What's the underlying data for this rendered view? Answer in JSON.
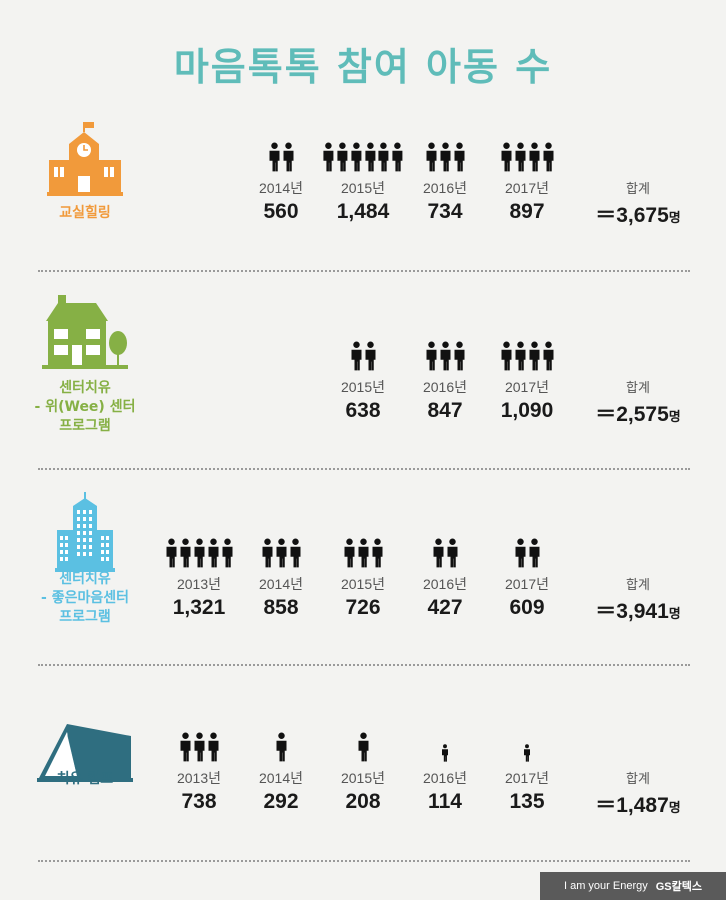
{
  "title": "마음톡톡 참여 아동 수",
  "total_label": "합계",
  "unit": "명",
  "colors": {
    "title": "#5fbcb9",
    "orange": "#f19a3b",
    "green": "#86b045",
    "blue": "#5bc0e2",
    "teal": "#2f6e80"
  },
  "sections": [
    {
      "label_lines": [
        "교실힐링"
      ],
      "icon": "school-building-icon",
      "color": "#f19a3b",
      "years": [
        {
          "year": "2014년",
          "value": "560",
          "figures": 2
        },
        {
          "year": "2015년",
          "value": "1,484",
          "figures": 6
        },
        {
          "year": "2016년",
          "value": "734",
          "figures": 3
        },
        {
          "year": "2017년",
          "value": "897",
          "figures": 4
        }
      ],
      "total": "＝3,675"
    },
    {
      "label_lines": [
        "센터치유",
        "- 위(Wee) 센터",
        "프로그램"
      ],
      "icon": "house-with-tree-icon",
      "color": "#86b045",
      "years": [
        {
          "year": "2015년",
          "value": "638",
          "figures": 2
        },
        {
          "year": "2016년",
          "value": "847",
          "figures": 3
        },
        {
          "year": "2017년",
          "value": "1,090",
          "figures": 4
        }
      ],
      "total": "＝2,575"
    },
    {
      "label_lines": [
        "센터치유",
        "- 좋은마음센터",
        "프로그램"
      ],
      "icon": "office-tower-icon",
      "color": "#5bc0e2",
      "years": [
        {
          "year": "2013년",
          "value": "1,321",
          "figures": 5
        },
        {
          "year": "2014년",
          "value": "858",
          "figures": 3
        },
        {
          "year": "2015년",
          "value": "726",
          "figures": 3
        },
        {
          "year": "2016년",
          "value": "427",
          "figures": 2
        },
        {
          "year": "2017년",
          "value": "609",
          "figures": 2
        }
      ],
      "total": "＝3,941"
    },
    {
      "label_lines": [
        "치유 캠프"
      ],
      "icon": "tent-icon",
      "color": "#2f6e80",
      "years": [
        {
          "year": "2013년",
          "value": "738",
          "figures": 3
        },
        {
          "year": "2014년",
          "value": "292",
          "figures": 1
        },
        {
          "year": "2015년",
          "value": "208",
          "figures": 1
        },
        {
          "year": "2016년",
          "value": "114",
          "figures": 1,
          "small": true
        },
        {
          "year": "2017년",
          "value": "135",
          "figures": 1,
          "small": true
        }
      ],
      "total": "＝1,487"
    }
  ],
  "footer": {
    "tagline": "I am your Energy",
    "brand": "GS칼텍스"
  }
}
